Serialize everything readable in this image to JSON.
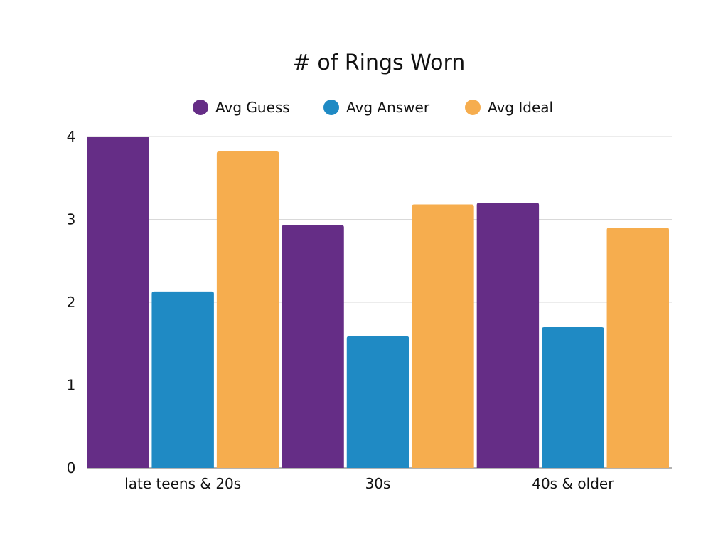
{
  "chart_data": {
    "type": "bar",
    "title": "# of Rings Worn",
    "xlabel": "",
    "ylabel": "",
    "categories": [
      "late teens & 20s",
      "30s",
      "40s & older"
    ],
    "series": [
      {
        "name": "Avg Guess",
        "values": [
          4.0,
          2.93,
          3.2
        ],
        "color": "#652D86"
      },
      {
        "name": "Avg Answer",
        "values": [
          2.13,
          1.59,
          1.7
        ],
        "color": "#1F8AC4"
      },
      {
        "name": "Avg Ideal",
        "values": [
          3.82,
          3.18,
          2.9
        ],
        "color": "#F6AD4E"
      }
    ],
    "ylim": [
      0,
      4
    ],
    "yticks": [
      "0",
      "1",
      "2",
      "3",
      "4"
    ],
    "grid": true,
    "legend_position": "top-center"
  }
}
